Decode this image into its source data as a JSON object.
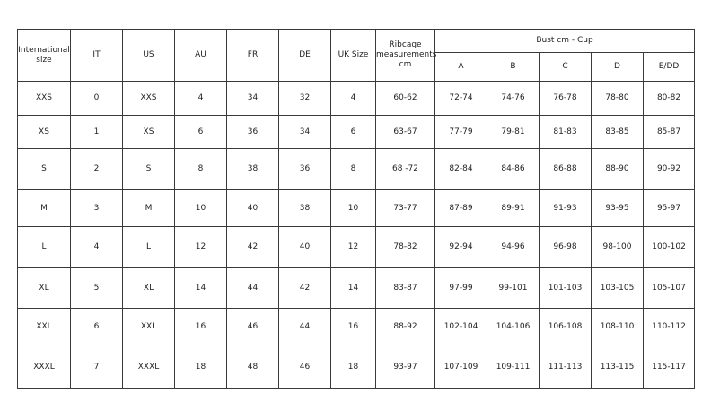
{
  "header": {
    "columns": [
      "International size",
      "IT",
      "US",
      "AU",
      "FR",
      "DE",
      "UK Size",
      "Ribcage measurements cm"
    ],
    "bust_group": "Bust cm - Cup",
    "cups": [
      "A",
      "B",
      "C",
      "D",
      "E/DD"
    ]
  },
  "rows": [
    [
      "XXS",
      "0",
      "XXS",
      "4",
      "34",
      "32",
      "4",
      "60-62",
      "72-74",
      "74-76",
      "76-78",
      "78-80",
      "80-82"
    ],
    [
      "XS",
      "1",
      "XS",
      "6",
      "36",
      "34",
      "6",
      "63-67",
      "77-79",
      "79-81",
      "81-83",
      "83-85",
      "85-87"
    ],
    [
      "S",
      "2",
      "S",
      "8",
      "38",
      "36",
      "8",
      "68 -72",
      "82-84",
      "84-86",
      "86-88",
      "88-90",
      "90-92"
    ],
    [
      "M",
      "3",
      "M",
      "10",
      "40",
      "38",
      "10",
      "73-77",
      "87-89",
      "89-91",
      "91-93",
      "93-95",
      "95-97"
    ],
    [
      "L",
      "4",
      "L",
      "12",
      "42",
      "40",
      "12",
      "78-82",
      "92-94",
      "94-96",
      "96-98",
      "98-100",
      "100-102"
    ],
    [
      "XL",
      "5",
      "XL",
      "14",
      "44",
      "42",
      "14",
      "83-87",
      "97-99",
      "99-101",
      "101-103",
      "103-105",
      "105-107"
    ],
    [
      "XXL",
      "6",
      "XXL",
      "16",
      "46",
      "44",
      "16",
      "88-92",
      "102-104",
      "104-106",
      "106-108",
      "108-110",
      "110-112"
    ],
    [
      "XXXL",
      "7",
      "XXXL",
      "18",
      "48",
      "46",
      "18",
      "93-97",
      "107-109",
      "109-111",
      "111-113",
      "113-115",
      "115-117"
    ]
  ]
}
